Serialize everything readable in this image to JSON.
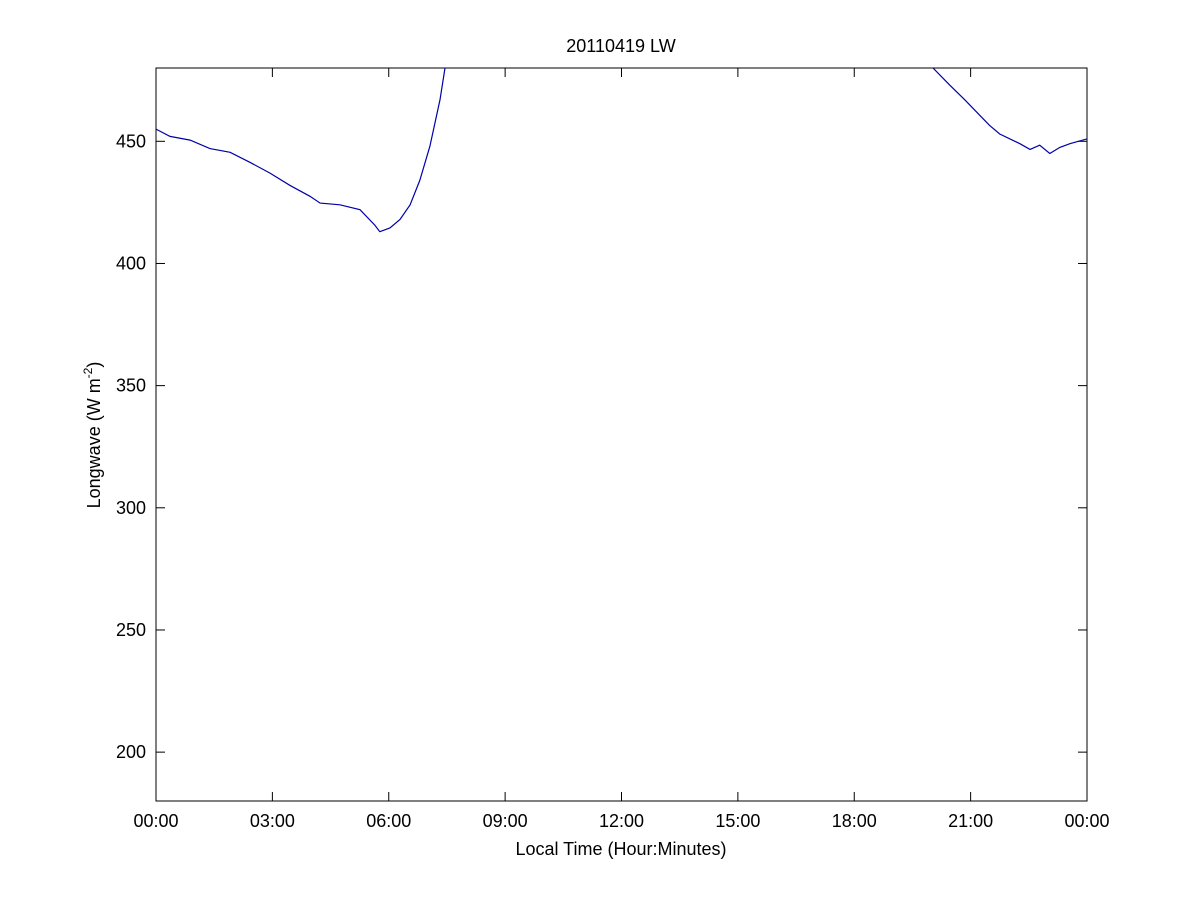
{
  "chart_data": {
    "type": "line",
    "title": "20110419 LW",
    "xlabel": "Local Time (Hour:Minutes)",
    "ylabel_main": "Longwave (W m",
    "ylabel_sup": "-2",
    "ylabel_close": ")",
    "xlim_hours": [
      0,
      24
    ],
    "ylim": [
      180,
      480
    ],
    "x_ticks": [
      {
        "hour": 0,
        "label": "00:00"
      },
      {
        "hour": 3,
        "label": "03:00"
      },
      {
        "hour": 6,
        "label": "06:00"
      },
      {
        "hour": 9,
        "label": "09:00"
      },
      {
        "hour": 12,
        "label": "12:00"
      },
      {
        "hour": 15,
        "label": "15:00"
      },
      {
        "hour": 18,
        "label": "18:00"
      },
      {
        "hour": 21,
        "label": "21:00"
      },
      {
        "hour": 24,
        "label": "00:00"
      }
    ],
    "y_ticks": [
      200,
      250,
      300,
      350,
      400,
      450
    ],
    "grid": false,
    "line_color": "#0000aa",
    "series": [
      {
        "segments": [
          [
            [
              0.0,
              455
            ],
            [
              0.36,
              452
            ],
            [
              0.88,
              450.5
            ],
            [
              1.39,
              447
            ],
            [
              1.91,
              445.5
            ],
            [
              2.42,
              441.4
            ],
            [
              2.94,
              437
            ],
            [
              3.45,
              432
            ],
            [
              3.97,
              427.5
            ],
            [
              4.23,
              424.7
            ],
            [
              4.74,
              424
            ],
            [
              5.26,
              422
            ],
            [
              5.64,
              415.7
            ],
            [
              5.77,
              413
            ],
            [
              6.03,
              414.5
            ],
            [
              6.29,
              418
            ],
            [
              6.55,
              424
            ],
            [
              6.8,
              434
            ],
            [
              7.06,
              448
            ],
            [
              7.32,
              467
            ],
            [
              7.45,
              480
            ]
          ],
          [
            [
              20.03,
              480
            ],
            [
              20.46,
              473
            ],
            [
              20.85,
              467
            ],
            [
              21.24,
              460.6
            ],
            [
              21.49,
              456.5
            ],
            [
              21.75,
              453
            ],
            [
              22.27,
              449
            ],
            [
              22.53,
              446.7
            ],
            [
              22.78,
              448.4
            ],
            [
              23.04,
              445
            ],
            [
              23.3,
              447.5
            ],
            [
              23.56,
              449
            ],
            [
              24.0,
              451
            ]
          ]
        ]
      }
    ]
  }
}
